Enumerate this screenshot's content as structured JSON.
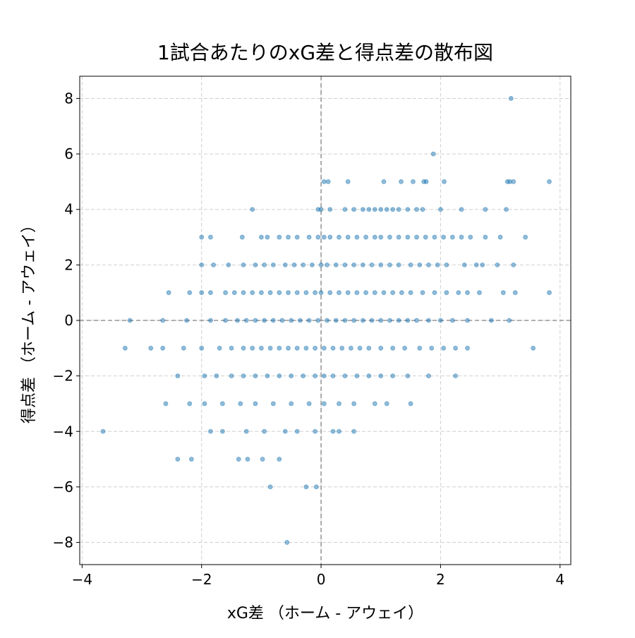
{
  "chart_data": {
    "type": "scatter",
    "title": "1試合あたりのxG差と得点差の散布図",
    "xlabel": "xG差 （ホーム - アウェイ）",
    "ylabel": "得点差 （ホーム - アウェイ）",
    "color": "#1f77b4",
    "grid": true,
    "reference_lines": {
      "x": 0,
      "y": 0
    },
    "xlim": [
      -4.04,
      4.18
    ],
    "ylim": [
      -8.8,
      8.8
    ],
    "xticks": [
      {
        "value": -4,
        "label": "−4"
      },
      {
        "value": -2,
        "label": "−2"
      },
      0,
      2,
      4
    ],
    "yticks": [
      {
        "value": -8,
        "label": "−8"
      },
      {
        "value": -6,
        "label": "−6"
      },
      {
        "value": -4,
        "label": "−4"
      },
      {
        "value": -2,
        "label": "−2"
      },
      0,
      2,
      4,
      6,
      8
    ],
    "x": [
      3.18,
      1.88,
      0.05,
      0.12,
      0.45,
      1.05,
      1.34,
      1.54,
      1.72,
      1.76,
      2.06,
      3.12,
      3.16,
      3.22,
      3.82,
      -1.15,
      -0.05,
      0.0,
      0.15,
      0.4,
      0.55,
      0.7,
      0.8,
      0.9,
      1.0,
      1.1,
      1.2,
      1.3,
      1.45,
      1.6,
      1.7,
      2.0,
      2.35,
      2.75,
      3.1,
      -2.0,
      -1.85,
      -1.32,
      -1.0,
      -0.9,
      -0.7,
      -0.55,
      -0.4,
      -0.2,
      -0.05,
      0.05,
      0.15,
      0.3,
      0.45,
      0.6,
      0.75,
      0.9,
      1.0,
      1.15,
      1.3,
      1.45,
      1.6,
      1.75,
      1.9,
      2.05,
      2.2,
      2.35,
      2.5,
      2.75,
      3.0,
      3.42,
      -2.0,
      -1.8,
      -1.55,
      -1.3,
      -1.1,
      -0.95,
      -0.8,
      -0.6,
      -0.45,
      -0.3,
      -0.15,
      0.0,
      0.1,
      0.25,
      0.4,
      0.55,
      0.7,
      0.85,
      1.0,
      1.15,
      1.3,
      1.5,
      1.65,
      1.8,
      1.95,
      2.1,
      2.4,
      2.6,
      2.7,
      2.95,
      3.22,
      -2.55,
      -2.2,
      -2.0,
      -1.85,
      -1.6,
      -1.45,
      -1.3,
      -1.15,
      -1.0,
      -0.85,
      -0.7,
      -0.55,
      -0.4,
      -0.25,
      -0.1,
      0.0,
      0.15,
      0.3,
      0.45,
      0.6,
      0.75,
      0.9,
      1.05,
      1.2,
      1.35,
      1.5,
      1.7,
      1.9,
      2.1,
      2.3,
      2.45,
      2.65,
      3.05,
      3.25,
      3.82,
      -3.2,
      -2.65,
      -2.25,
      -1.85,
      -1.6,
      -1.4,
      -1.25,
      -1.1,
      -0.95,
      -0.8,
      -0.65,
      -0.5,
      -0.35,
      -0.2,
      -0.05,
      0.1,
      0.25,
      0.4,
      0.55,
      0.7,
      0.85,
      1.0,
      1.15,
      1.3,
      1.45,
      1.6,
      1.8,
      2.0,
      2.2,
      2.45,
      2.85,
      3.15,
      -3.28,
      -2.85,
      -2.65,
      -2.3,
      -2.0,
      -1.7,
      -1.5,
      -1.3,
      -1.15,
      -1.0,
      -0.85,
      -0.7,
      -0.55,
      -0.4,
      -0.25,
      -0.1,
      0.05,
      0.2,
      0.35,
      0.5,
      0.65,
      0.8,
      1.0,
      1.2,
      1.4,
      1.65,
      1.85,
      2.05,
      2.25,
      2.45,
      3.55,
      -2.4,
      -1.95,
      -1.75,
      -1.5,
      -1.3,
      -1.1,
      -0.9,
      -0.7,
      -0.5,
      -0.3,
      -0.1,
      0.05,
      0.2,
      0.4,
      0.6,
      0.8,
      1.0,
      1.2,
      1.45,
      1.8,
      2.25,
      -2.6,
      -2.2,
      -1.95,
      -1.65,
      -1.35,
      -1.1,
      -0.8,
      -0.5,
      -0.2,
      0.05,
      0.3,
      0.55,
      0.9,
      1.1,
      1.5,
      -3.65,
      -1.85,
      -1.65,
      -1.25,
      -0.95,
      -0.6,
      -0.4,
      -0.1,
      0.2,
      0.3,
      0.55,
      -2.4,
      -2.17,
      -1.38,
      -1.23,
      -0.98,
      -0.7,
      -0.85,
      -0.25,
      -0.08,
      -0.57
    ],
    "y": [
      8,
      6,
      5,
      5,
      5,
      5,
      5,
      5,
      5,
      5,
      5,
      5,
      5,
      5,
      5,
      4,
      4,
      4,
      4,
      4,
      4,
      4,
      4,
      4,
      4,
      4,
      4,
      4,
      4,
      4,
      4,
      4,
      4,
      4,
      4,
      3,
      3,
      3,
      3,
      3,
      3,
      3,
      3,
      3,
      3,
      3,
      3,
      3,
      3,
      3,
      3,
      3,
      3,
      3,
      3,
      3,
      3,
      3,
      3,
      3,
      3,
      3,
      3,
      3,
      3,
      3,
      2,
      2,
      2,
      2,
      2,
      2,
      2,
      2,
      2,
      2,
      2,
      2,
      2,
      2,
      2,
      2,
      2,
      2,
      2,
      2,
      2,
      2,
      2,
      2,
      2,
      2,
      2,
      2,
      2,
      2,
      2,
      1,
      1,
      1,
      1,
      1,
      1,
      1,
      1,
      1,
      1,
      1,
      1,
      1,
      1,
      1,
      1,
      1,
      1,
      1,
      1,
      1,
      1,
      1,
      1,
      1,
      1,
      1,
      1,
      1,
      1,
      1,
      1,
      1,
      1,
      1,
      0,
      0,
      0,
      0,
      0,
      0,
      0,
      0,
      0,
      0,
      0,
      0,
      0,
      0,
      0,
      0,
      0,
      0,
      0,
      0,
      0,
      0,
      0,
      0,
      0,
      0,
      0,
      0,
      0,
      0,
      0,
      0,
      -1,
      -1,
      -1,
      -1,
      -1,
      -1,
      -1,
      -1,
      -1,
      -1,
      -1,
      -1,
      -1,
      -1,
      -1,
      -1,
      -1,
      -1,
      -1,
      -1,
      -1,
      -1,
      -1,
      -1,
      -1,
      -1,
      -1,
      -1,
      -1,
      -1,
      -1,
      -2,
      -2,
      -2,
      -2,
      -2,
      -2,
      -2,
      -2,
      -2,
      -2,
      -2,
      -2,
      -2,
      -2,
      -2,
      -2,
      -2,
      -2,
      -2,
      -2,
      -2,
      -3,
      -3,
      -3,
      -3,
      -3,
      -3,
      -3,
      -3,
      -3,
      -3,
      -3,
      -3,
      -3,
      -3,
      -3,
      -4,
      -4,
      -4,
      -4,
      -4,
      -4,
      -4,
      -4,
      -4,
      -4,
      -4,
      -5,
      -5,
      -5,
      -5,
      -5,
      -5,
      -6,
      -6,
      -6,
      -8
    ]
  }
}
